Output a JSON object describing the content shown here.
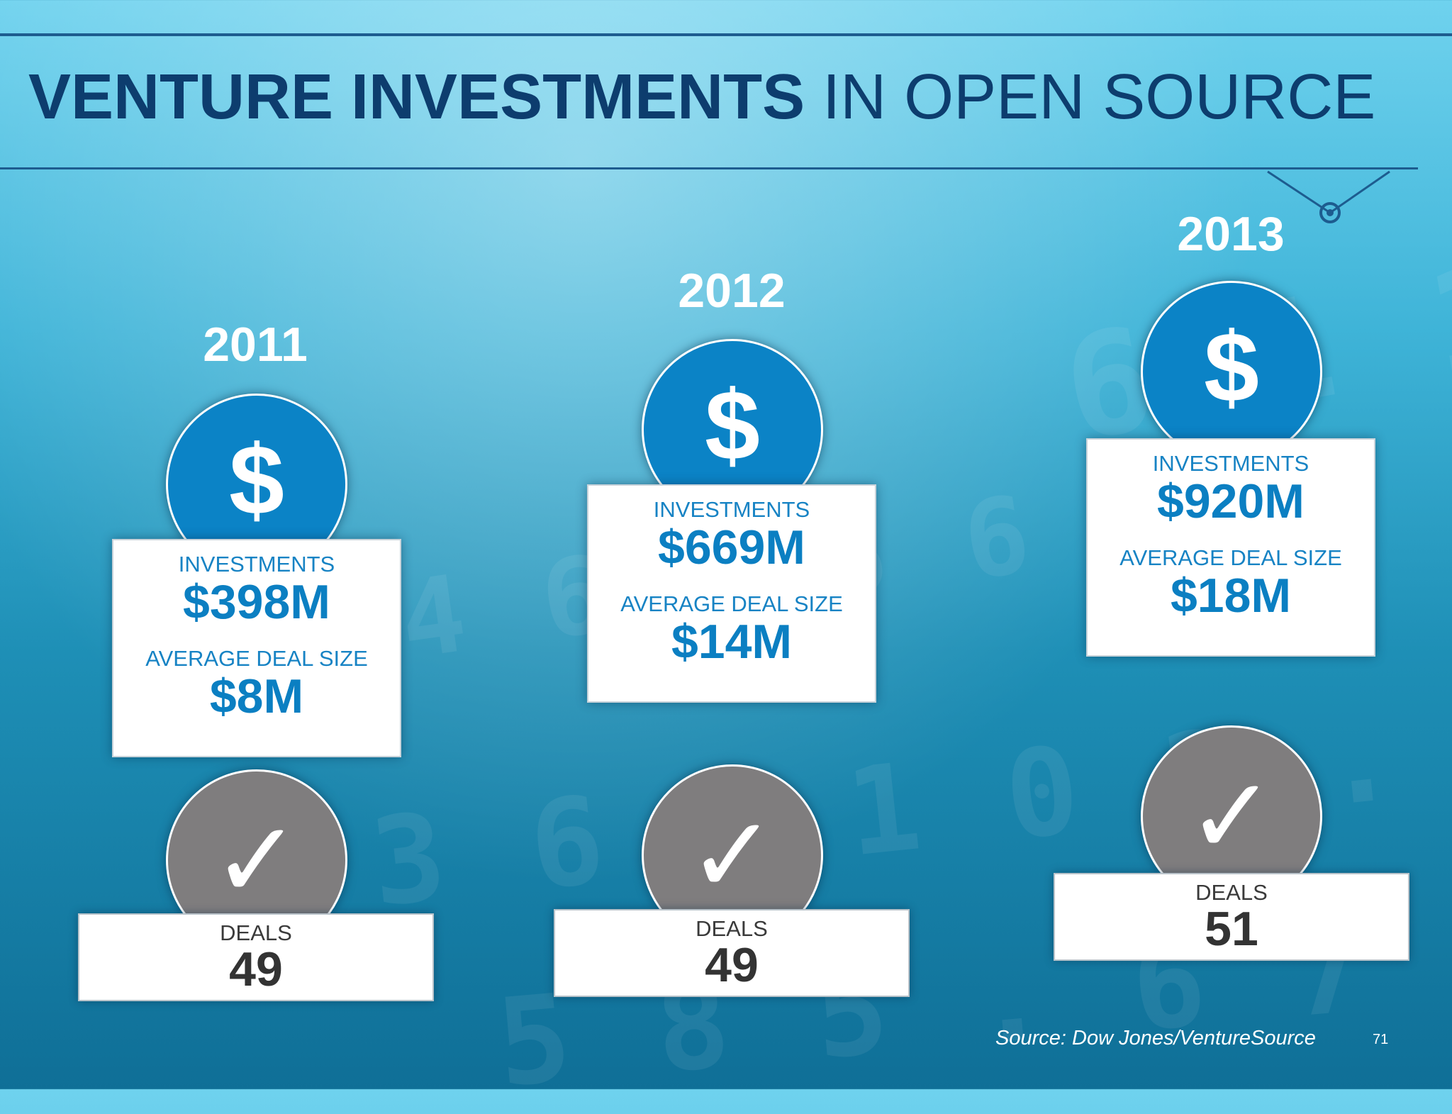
{
  "slide": {
    "title_bold": "VENTURE INVESTMENTS",
    "title_rest": " IN OPEN SOURCE",
    "source": "Source: Dow Jones/VentureSource",
    "page_number": "71"
  },
  "columns": [
    {
      "year": "2011",
      "coin_symbol": "$",
      "investments_label": "INVESTMENTS",
      "investments_value": "$398M",
      "deal_size_label": "AVERAGE DEAL SIZE",
      "deal_size_value": "$8M",
      "check_symbol": "✓",
      "deals_label": "DEALS",
      "deals_value": "49"
    },
    {
      "year": "2012",
      "coin_symbol": "$",
      "investments_label": "INVESTMENTS",
      "investments_value": "$669M",
      "deal_size_label": "AVERAGE DEAL SIZE",
      "deal_size_value": "$14M",
      "check_symbol": "✓",
      "deals_label": "DEALS",
      "deals_value": "49"
    },
    {
      "year": "2013",
      "coin_symbol": "$",
      "investments_label": "INVESTMENTS",
      "investments_value": "$920M",
      "deal_size_label": "AVERAGE DEAL SIZE",
      "deal_size_value": "$18M",
      "check_symbol": "✓",
      "deals_label": "DEALS",
      "deals_value": "51"
    }
  ],
  "colors": {
    "title": "#0d3d6e",
    "accent_blue": "#0b83c6",
    "check_gray": "#7f7d7e"
  }
}
